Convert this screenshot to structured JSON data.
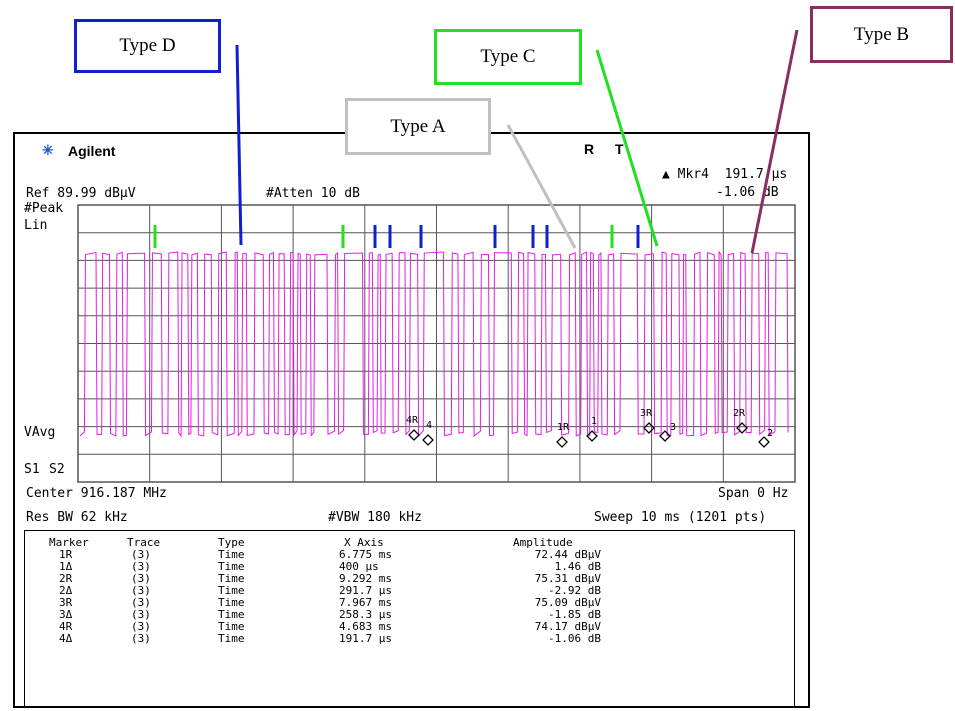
{
  "callouts": [
    {
      "id": "type-d",
      "label": "Type D",
      "color": "#1020d0"
    },
    {
      "id": "type-c",
      "label": "Type C",
      "color": "#20e020"
    },
    {
      "id": "type-b",
      "label": "Type B",
      "color": "#8a2d62"
    },
    {
      "id": "type-a",
      "label": "Type A",
      "color": "#c0c0c0"
    }
  ],
  "analyzer": {
    "brand": "Agilent",
    "status_r": "R",
    "status_t": "T",
    "marker_readout": "▲ Mkr4  191.7 μs",
    "marker_delta": "-1.06 dB",
    "ref_level": "Ref 89.99 dBμV",
    "atten": "#Atten 10 dB",
    "detector": "#Peak",
    "scale": "Lin",
    "vavg": "VAvg",
    "s1": "S1",
    "s2": "S2",
    "center": "Center 916.187 MHz",
    "span": "Span 0 Hz",
    "res_bw": "Res BW 62 kHz",
    "vbw": "#VBW 180 kHz",
    "sweep": "Sweep 10 ms (1201 pts)",
    "trace_color": "#e020e0",
    "marker_tags": [
      "4R",
      "4",
      "1R",
      "1",
      "3R",
      "3",
      "2R",
      "2"
    ]
  },
  "marker_table": {
    "headers": [
      "Marker",
      "Trace",
      "Type",
      "X Axis",
      "Amplitude"
    ],
    "rows": [
      [
        "1R",
        "(3)",
        "Time",
        "6.775 ms",
        "72.44 dBμV"
      ],
      [
        "1Δ",
        "(3)",
        "Time",
        "400 μs",
        "1.46 dB"
      ],
      [
        "2R",
        "(3)",
        "Time",
        "9.292 ms",
        "75.31 dBμV"
      ],
      [
        "2Δ",
        "(3)",
        "Time",
        "291.7 μs",
        "-2.92 dB"
      ],
      [
        "3R",
        "(3)",
        "Time",
        "7.967 ms",
        "75.09 dBμV"
      ],
      [
        "3Δ",
        "(3)",
        "Time",
        "258.3 μs",
        "-1.85 dB"
      ],
      [
        "4R",
        "(3)",
        "Time",
        "4.683 ms",
        "74.17 dBμV"
      ],
      [
        "4Δ",
        "(3)",
        "Time",
        "191.7 μs",
        "-1.06 dB"
      ]
    ]
  }
}
